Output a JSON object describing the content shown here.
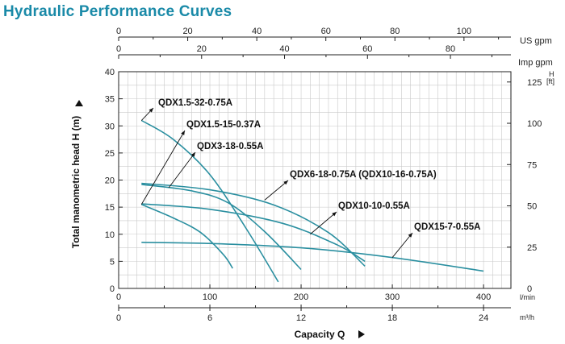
{
  "title": "Hydraulic Performance Curves",
  "chart_data": {
    "type": "line",
    "title": "Hydraulic Performance Curves",
    "xlabel": "Capacity Q",
    "ylabel": "Total manometric head H (m)",
    "x_unit_lmin": "l/min",
    "x_unit_m3h": "m³/h",
    "x_unit_usgpm": "US gpm",
    "x_unit_impgpm": "Imp gpm",
    "y_unit_ft": "H",
    "y_unit_ft_sub": "[ft]",
    "xlim_lmin": [
      0,
      430
    ],
    "ylim_m": [
      0,
      40
    ],
    "x_ticks_lmin": [
      "0",
      "100",
      "200",
      "300",
      "400"
    ],
    "x_ticks_m3h": [
      "0",
      "6",
      "12",
      "18",
      "24"
    ],
    "x_ticks_usgpm": [
      "0",
      "20",
      "40",
      "60",
      "80",
      "100"
    ],
    "x_ticks_impgpm": [
      "0",
      "20",
      "40",
      "60",
      "80"
    ],
    "y_ticks_m": [
      "0",
      "5",
      "10",
      "15",
      "20",
      "25",
      "30",
      "35",
      "40"
    ],
    "y_ticks_ft": [
      "0",
      "25",
      "50",
      "75",
      "100",
      "125"
    ],
    "series": [
      {
        "name": "QDX1.5-32-0.75A",
        "q": [
          25,
          60,
          100,
          140,
          175
        ],
        "h": [
          31,
          27.5,
          21,
          11,
          1.2
        ]
      },
      {
        "name": "QDX1.5-15-0.37A",
        "q": [
          25,
          60,
          90,
          115,
          125
        ],
        "h": [
          15.5,
          13,
          10.3,
          6.2,
          3.7
        ]
      },
      {
        "name": "QDX3-18-0.55A",
        "q": [
          25,
          80,
          120,
          160,
          200
        ],
        "h": [
          19.2,
          18,
          15.8,
          10.5,
          3.5
        ]
      },
      {
        "name": "QDX6-18-0.75A (QDX10-16-0.75A)",
        "q": [
          25,
          100,
          170,
          230,
          270
        ],
        "h": [
          19.4,
          18.2,
          15.4,
          10.3,
          4.1
        ]
      },
      {
        "name": "QDX10-10-0.55A",
        "q": [
          25,
          100,
          180,
          240,
          270
        ],
        "h": [
          15.6,
          14.6,
          12,
          8,
          5.0
        ]
      },
      {
        "name": "QDX15-7-0.55A",
        "q": [
          25,
          100,
          200,
          300,
          400
        ],
        "h": [
          8.5,
          8.3,
          7.5,
          5.7,
          3.2
        ]
      }
    ],
    "labels": [
      "QDX1.5-32-0.75A",
      "QDX1.5-15-0.37A",
      "QDX3-18-0.55A",
      "QDX6-18-0.75A (QDX10-16-0.75A)",
      "QDX10-10-0.55A",
      "QDX15-7-0.55A"
    ],
    "curve_color": "#2a8fa0",
    "grid_color": "#c9c9c9"
  }
}
